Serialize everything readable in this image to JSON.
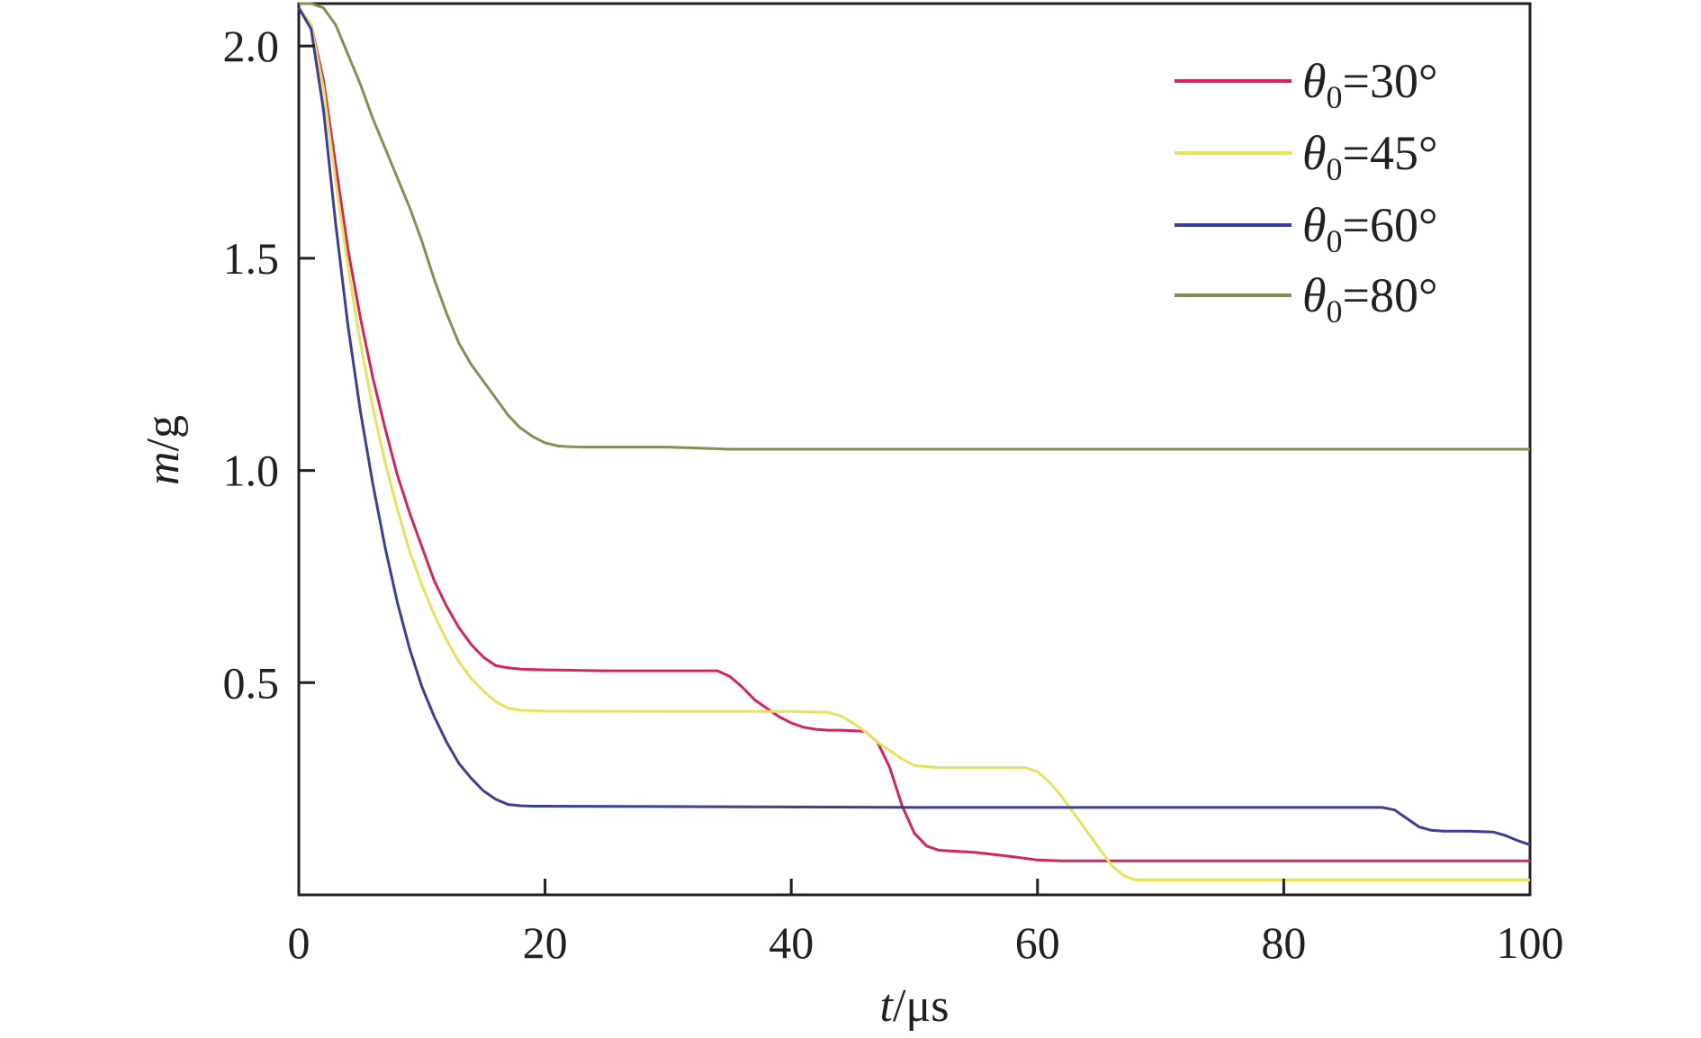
{
  "chart_data": {
    "type": "line",
    "xlabel": {
      "symbol": "t",
      "unit": "/μs"
    },
    "ylabel": {
      "symbol": "m",
      "unit": "/g"
    },
    "xlim": [
      0,
      100
    ],
    "ylim": [
      0,
      2.1
    ],
    "xticks": [
      0,
      20,
      40,
      60,
      80,
      100
    ],
    "xtick_labels": [
      "0",
      "20",
      "40",
      "60",
      "80",
      "100"
    ],
    "yticks": [
      0.5,
      1.0,
      1.5,
      2.0
    ],
    "ytick_labels": [
      "0.5",
      "1.0",
      "1.5",
      "2.0"
    ],
    "grid": false,
    "legend_position": "top-right",
    "series": [
      {
        "name_symbol": "θ",
        "name_sub": "0",
        "name_value": "=30°",
        "color": "#d6245a",
        "x": [
          0,
          1,
          2,
          3,
          4,
          5,
          6,
          7,
          8,
          9,
          10,
          11,
          12,
          13,
          14,
          15,
          16,
          17,
          18,
          20,
          25,
          30,
          34,
          35,
          36,
          37,
          38,
          39,
          40,
          41,
          42,
          43,
          44,
          45,
          46,
          47,
          48,
          49,
          50,
          51,
          52,
          55,
          58,
          60,
          62,
          65,
          70,
          80,
          90,
          100
        ],
        "y": [
          2.09,
          2.05,
          1.92,
          1.72,
          1.52,
          1.36,
          1.22,
          1.1,
          0.99,
          0.9,
          0.82,
          0.74,
          0.68,
          0.63,
          0.59,
          0.56,
          0.54,
          0.535,
          0.532,
          0.53,
          0.528,
          0.528,
          0.528,
          0.515,
          0.49,
          0.46,
          0.44,
          0.42,
          0.405,
          0.395,
          0.39,
          0.388,
          0.388,
          0.387,
          0.385,
          0.36,
          0.3,
          0.21,
          0.145,
          0.115,
          0.105,
          0.1,
          0.09,
          0.082,
          0.08,
          0.08,
          0.08,
          0.08,
          0.08,
          0.08
        ]
      },
      {
        "name_symbol": "θ",
        "name_sub": "0",
        "name_value": "=45°",
        "color": "#e6e35a",
        "x": [
          0,
          1,
          2,
          3,
          4,
          5,
          6,
          7,
          8,
          9,
          10,
          11,
          12,
          13,
          14,
          15,
          16,
          17,
          18,
          20,
          30,
          40,
          43,
          44,
          45,
          46,
          47,
          48,
          49,
          50,
          51,
          52,
          55,
          58,
          59,
          60,
          61,
          62,
          63,
          64,
          65,
          66,
          67,
          68,
          70,
          80,
          90,
          100
        ],
        "y": [
          2.09,
          2.05,
          1.9,
          1.68,
          1.48,
          1.3,
          1.15,
          1.02,
          0.91,
          0.81,
          0.73,
          0.66,
          0.6,
          0.55,
          0.51,
          0.48,
          0.455,
          0.44,
          0.435,
          0.433,
          0.432,
          0.432,
          0.43,
          0.422,
          0.405,
          0.385,
          0.36,
          0.34,
          0.32,
          0.305,
          0.302,
          0.3,
          0.3,
          0.3,
          0.3,
          0.29,
          0.265,
          0.23,
          0.19,
          0.15,
          0.11,
          0.07,
          0.045,
          0.035,
          0.035,
          0.035,
          0.035,
          0.035
        ]
      },
      {
        "name_symbol": "θ",
        "name_sub": "0",
        "name_value": "=60°",
        "color": "#3a3d9a",
        "x": [
          0,
          1,
          2,
          3,
          4,
          5,
          6,
          7,
          8,
          9,
          10,
          11,
          12,
          13,
          14,
          15,
          16,
          17,
          18,
          19,
          20,
          30,
          40,
          50,
          60,
          70,
          80,
          88,
          89,
          90,
          91,
          92,
          93,
          95,
          97,
          98,
          99,
          100
        ],
        "y": [
          2.09,
          2.04,
          1.85,
          1.58,
          1.34,
          1.14,
          0.97,
          0.82,
          0.69,
          0.58,
          0.49,
          0.42,
          0.36,
          0.31,
          0.275,
          0.245,
          0.225,
          0.213,
          0.21,
          0.209,
          0.209,
          0.208,
          0.207,
          0.206,
          0.206,
          0.206,
          0.206,
          0.206,
          0.2,
          0.18,
          0.16,
          0.152,
          0.15,
          0.15,
          0.148,
          0.14,
          0.128,
          0.118
        ]
      },
      {
        "name_symbol": "θ",
        "name_sub": "0",
        "name_value": "=80°",
        "color": "#8c8c50",
        "x": [
          0,
          1,
          2,
          3,
          4,
          5,
          6,
          7,
          8,
          9,
          10,
          11,
          12,
          13,
          14,
          15,
          16,
          17,
          18,
          19,
          20,
          21,
          22,
          23,
          25,
          30,
          35,
          40,
          50,
          60,
          70,
          80,
          90,
          100
        ],
        "y": [
          2.1,
          2.1,
          2.09,
          2.05,
          1.98,
          1.91,
          1.83,
          1.76,
          1.69,
          1.62,
          1.54,
          1.45,
          1.37,
          1.3,
          1.25,
          1.21,
          1.17,
          1.13,
          1.1,
          1.08,
          1.065,
          1.058,
          1.056,
          1.055,
          1.055,
          1.055,
          1.05,
          1.05,
          1.05,
          1.05,
          1.05,
          1.05,
          1.05,
          1.05
        ]
      }
    ]
  }
}
